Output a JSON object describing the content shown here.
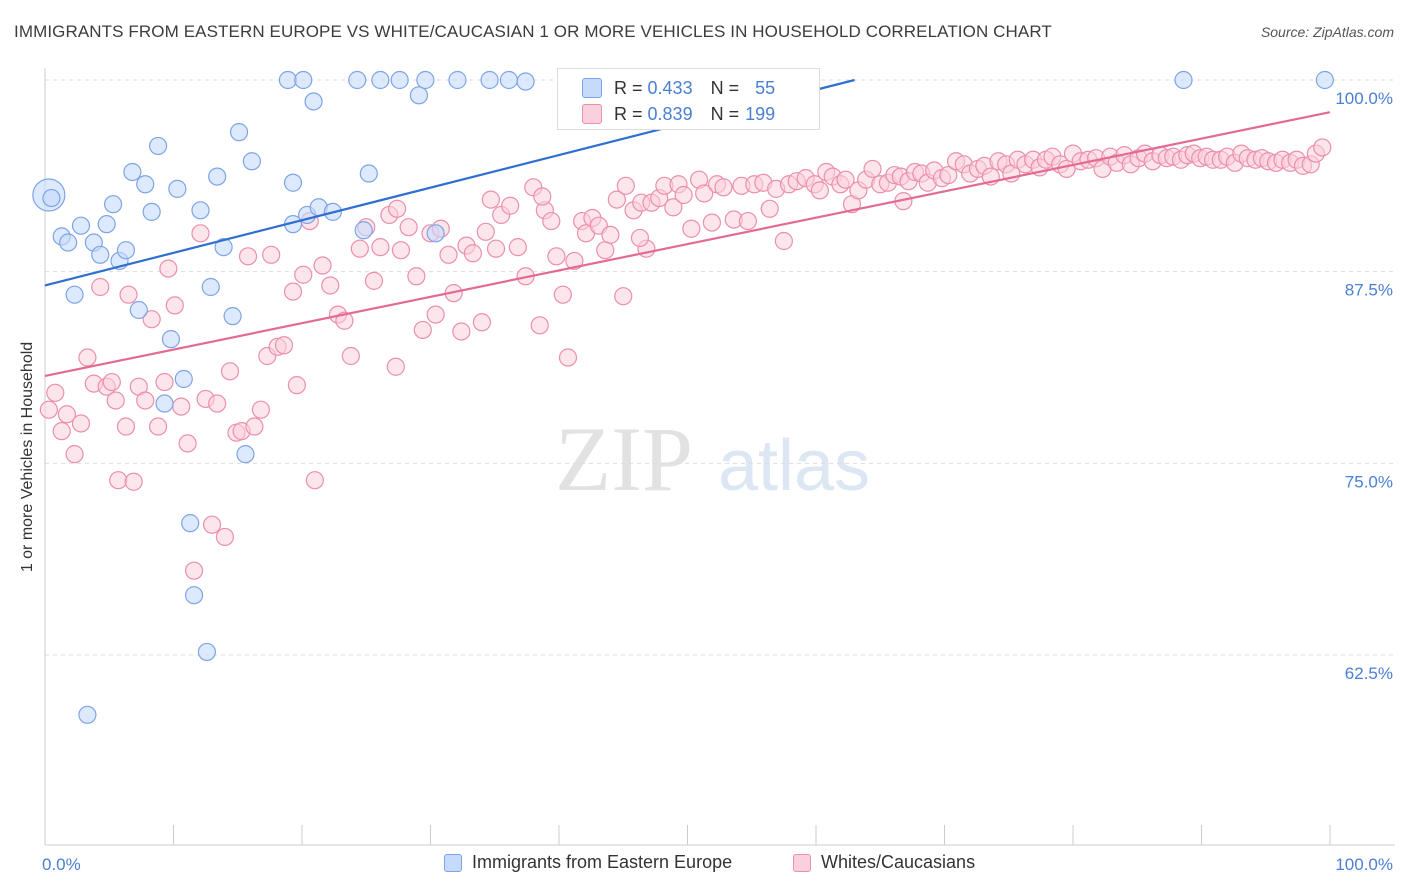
{
  "title": "IMMIGRANTS FROM EASTERN EUROPE VS WHITE/CAUCASIAN 1 OR MORE VEHICLES IN HOUSEHOLD CORRELATION CHART",
  "source": "Source: ZipAtlas.com",
  "watermark": {
    "zip": "ZIP",
    "atlas": "atlas"
  },
  "stats": {
    "blue": {
      "r_label": "R =",
      "r_value": "0.433",
      "n_label": "N =",
      "n_value": "55"
    },
    "pink": {
      "r_label": "R =",
      "r_value": "0.839",
      "n_label": "N =",
      "n_value": "199"
    }
  },
  "colors": {
    "blue_fill": "#c6dafc",
    "blue_stroke": "#7ea4e6",
    "blue_line": "#2f6fd0",
    "pink_fill": "#fbd0dd",
    "pink_stroke": "#ec8fac",
    "pink_line": "#e36a93",
    "tick_label": "#4a7fd4",
    "grid": "#dddddd"
  },
  "chart_data": {
    "type": "scatter",
    "title": "IMMIGRANTS FROM EASTERN EUROPE VS WHITE/CAUCASIAN 1 OR MORE VEHICLES IN HOUSEHOLD CORRELATION CHART",
    "xlabel": "",
    "ylabel": "1 or more Vehicles in Household",
    "xlim": [
      0,
      100
    ],
    "ylim": [
      50.6,
      102
    ],
    "x_tick_labels": [
      "0.0%",
      "100.0%"
    ],
    "y_ticks": [
      62.5,
      75.0,
      87.5,
      100.0
    ],
    "y_tick_labels": [
      "62.5%",
      "75.0%",
      "87.5%",
      "100.0%"
    ],
    "grid": "horizontal dashed",
    "legend_position": "bottom",
    "series": [
      {
        "name": "Immigrants from Eastern Europe",
        "color": "blue",
        "points": [
          [
            0.3,
            92.5
          ],
          [
            0.5,
            92.3
          ],
          [
            1.3,
            89.8
          ],
          [
            1.8,
            89.4
          ],
          [
            2.3,
            86.0
          ],
          [
            2.8,
            90.5
          ],
          [
            3.3,
            58.6
          ],
          [
            3.8,
            89.4
          ],
          [
            4.3,
            88.6
          ],
          [
            4.8,
            90.6
          ],
          [
            5.3,
            91.9
          ],
          [
            5.8,
            88.2
          ],
          [
            6.3,
            88.9
          ],
          [
            6.8,
            94.0
          ],
          [
            7.3,
            85.0
          ],
          [
            7.8,
            93.2
          ],
          [
            8.3,
            91.4
          ],
          [
            8.8,
            95.7
          ],
          [
            9.3,
            78.9
          ],
          [
            9.8,
            83.1
          ],
          [
            10.3,
            92.9
          ],
          [
            10.8,
            80.5
          ],
          [
            11.3,
            71.1
          ],
          [
            11.6,
            66.4
          ],
          [
            12.1,
            91.5
          ],
          [
            12.6,
            62.7
          ],
          [
            12.9,
            86.5
          ],
          [
            13.4,
            93.7
          ],
          [
            13.9,
            89.1
          ],
          [
            14.6,
            84.6
          ],
          [
            15.1,
            96.6
          ],
          [
            15.6,
            75.6
          ],
          [
            16.1,
            94.7
          ],
          [
            18.9,
            100
          ],
          [
            19.3,
            93.3
          ],
          [
            19.3,
            90.6
          ],
          [
            20.1,
            100
          ],
          [
            20.4,
            91.2
          ],
          [
            20.9,
            98.6
          ],
          [
            21.3,
            91.7
          ],
          [
            22.4,
            91.4
          ],
          [
            24.3,
            100
          ],
          [
            24.8,
            90.2
          ],
          [
            25.2,
            93.9
          ],
          [
            26.1,
            100
          ],
          [
            27.6,
            100
          ],
          [
            29.1,
            99.0
          ],
          [
            29.6,
            100
          ],
          [
            30.4,
            90.0
          ],
          [
            32.1,
            100
          ],
          [
            34.6,
            100
          ],
          [
            36.1,
            100
          ],
          [
            37.4,
            99.9
          ],
          [
            88.6,
            100
          ],
          [
            99.6,
            100
          ]
        ],
        "big_points": [
          [
            0.3,
            92.5
          ]
        ],
        "trend": {
          "x0": 0,
          "y0": 86.6,
          "x1": 63,
          "y1": 100
        }
      },
      {
        "name": "Whites/Caucasians",
        "color": "pink",
        "points": [
          [
            0.3,
            78.5
          ],
          [
            0.8,
            79.6
          ],
          [
            1.3,
            77.1
          ],
          [
            1.7,
            78.2
          ],
          [
            2.3,
            75.6
          ],
          [
            2.8,
            77.6
          ],
          [
            3.3,
            81.9
          ],
          [
            3.8,
            80.2
          ],
          [
            4.3,
            86.5
          ],
          [
            4.8,
            80.0
          ],
          [
            5.2,
            80.3
          ],
          [
            5.5,
            79.1
          ],
          [
            5.7,
            73.9
          ],
          [
            6.3,
            77.4
          ],
          [
            6.5,
            86.0
          ],
          [
            6.9,
            73.8
          ],
          [
            7.3,
            80.0
          ],
          [
            7.8,
            79.1
          ],
          [
            8.3,
            84.4
          ],
          [
            8.8,
            77.4
          ],
          [
            9.3,
            80.3
          ],
          [
            9.6,
            87.7
          ],
          [
            10.1,
            85.3
          ],
          [
            10.6,
            78.7
          ],
          [
            11.1,
            76.3
          ],
          [
            11.6,
            68.0
          ],
          [
            12.1,
            90.0
          ],
          [
            12.5,
            79.2
          ],
          [
            13.0,
            71.0
          ],
          [
            13.4,
            78.9
          ],
          [
            14.0,
            70.2
          ],
          [
            14.4,
            81.0
          ],
          [
            14.9,
            77.0
          ],
          [
            15.3,
            77.1
          ],
          [
            15.8,
            88.5
          ],
          [
            16.3,
            77.4
          ],
          [
            16.8,
            78.5
          ],
          [
            17.3,
            82.0
          ],
          [
            17.6,
            88.6
          ],
          [
            18.1,
            82.6
          ],
          [
            18.6,
            82.7
          ],
          [
            19.3,
            86.2
          ],
          [
            19.6,
            80.1
          ],
          [
            20.1,
            87.3
          ],
          [
            20.6,
            90.8
          ],
          [
            21.0,
            73.9
          ],
          [
            21.6,
            87.9
          ],
          [
            22.2,
            86.6
          ],
          [
            22.8,
            84.7
          ],
          [
            23.3,
            84.3
          ],
          [
            23.8,
            82.0
          ],
          [
            24.5,
            89.0
          ],
          [
            25.0,
            90.4
          ],
          [
            25.6,
            86.9
          ],
          [
            26.1,
            89.1
          ],
          [
            26.8,
            91.2
          ],
          [
            27.3,
            81.3
          ],
          [
            27.7,
            88.9
          ],
          [
            28.3,
            90.4
          ],
          [
            28.9,
            87.2
          ],
          [
            29.4,
            83.7
          ],
          [
            30.0,
            90.0
          ],
          [
            30.4,
            84.7
          ],
          [
            30.8,
            90.3
          ],
          [
            31.4,
            88.6
          ],
          [
            31.8,
            86.1
          ],
          [
            32.4,
            83.6
          ],
          [
            32.8,
            89.2
          ],
          [
            33.3,
            88.7
          ],
          [
            34.0,
            84.2
          ],
          [
            34.7,
            92.2
          ],
          [
            35.1,
            89.0
          ],
          [
            35.5,
            91.2
          ],
          [
            36.2,
            91.8
          ],
          [
            36.8,
            89.1
          ],
          [
            37.4,
            87.2
          ],
          [
            38.0,
            93.0
          ],
          [
            38.5,
            84.0
          ],
          [
            38.9,
            91.5
          ],
          [
            39.4,
            90.8
          ],
          [
            39.8,
            88.5
          ],
          [
            40.3,
            86.0
          ],
          [
            40.7,
            81.9
          ],
          [
            41.2,
            88.2
          ],
          [
            41.8,
            90.8
          ],
          [
            42.1,
            90.0
          ],
          [
            42.6,
            91.0
          ],
          [
            43.1,
            90.5
          ],
          [
            43.6,
            88.9
          ],
          [
            44.0,
            89.9
          ],
          [
            44.5,
            92.2
          ],
          [
            45.0,
            85.9
          ],
          [
            45.2,
            93.1
          ],
          [
            45.8,
            91.5
          ],
          [
            46.4,
            92.0
          ],
          [
            46.8,
            89.0
          ],
          [
            47.2,
            92.0
          ],
          [
            47.8,
            92.3
          ],
          [
            48.2,
            93.1
          ],
          [
            48.9,
            91.7
          ],
          [
            49.3,
            93.2
          ],
          [
            49.7,
            92.5
          ],
          [
            50.3,
            90.3
          ],
          [
            50.9,
            93.5
          ],
          [
            51.3,
            92.6
          ],
          [
            51.9,
            90.7
          ],
          [
            52.3,
            93.2
          ],
          [
            52.8,
            93.0
          ],
          [
            53.6,
            90.9
          ],
          [
            54.2,
            93.1
          ],
          [
            54.7,
            90.8
          ],
          [
            55.2,
            93.2
          ],
          [
            55.9,
            93.3
          ],
          [
            56.4,
            91.6
          ],
          [
            56.9,
            92.9
          ],
          [
            57.5,
            89.5
          ],
          [
            57.9,
            93.2
          ],
          [
            58.5,
            93.4
          ],
          [
            59.2,
            93.6
          ],
          [
            59.9,
            93.2
          ],
          [
            60.3,
            92.8
          ],
          [
            60.8,
            94.0
          ],
          [
            61.3,
            93.7
          ],
          [
            61.9,
            93.2
          ],
          [
            62.3,
            93.5
          ],
          [
            62.8,
            91.9
          ],
          [
            63.3,
            92.8
          ],
          [
            63.9,
            93.5
          ],
          [
            64.4,
            94.2
          ],
          [
            65.0,
            93.2
          ],
          [
            65.6,
            93.3
          ],
          [
            66.1,
            93.8
          ],
          [
            66.6,
            93.7
          ],
          [
            67.2,
            93.4
          ],
          [
            67.7,
            94.0
          ],
          [
            68.2,
            93.9
          ],
          [
            68.7,
            93.3
          ],
          [
            69.2,
            94.1
          ],
          [
            69.8,
            93.6
          ],
          [
            70.3,
            93.8
          ],
          [
            70.9,
            94.7
          ],
          [
            71.5,
            94.5
          ],
          [
            72.0,
            93.9
          ],
          [
            72.6,
            94.2
          ],
          [
            73.1,
            94.4
          ],
          [
            73.6,
            93.7
          ],
          [
            74.2,
            94.7
          ],
          [
            74.8,
            94.5
          ],
          [
            75.2,
            93.9
          ],
          [
            75.7,
            94.8
          ],
          [
            76.3,
            94.5
          ],
          [
            76.9,
            94.8
          ],
          [
            77.4,
            94.3
          ],
          [
            77.9,
            94.8
          ],
          [
            78.4,
            95.0
          ],
          [
            79.0,
            94.5
          ],
          [
            79.5,
            94.2
          ],
          [
            80.0,
            95.2
          ],
          [
            80.6,
            94.7
          ],
          [
            81.2,
            94.8
          ],
          [
            81.8,
            94.9
          ],
          [
            82.3,
            94.2
          ],
          [
            82.9,
            95.0
          ],
          [
            83.4,
            94.6
          ],
          [
            84.0,
            95.1
          ],
          [
            84.5,
            94.5
          ],
          [
            85.1,
            94.9
          ],
          [
            85.6,
            95.2
          ],
          [
            86.2,
            94.7
          ],
          [
            86.8,
            95.1
          ],
          [
            87.3,
            94.9
          ],
          [
            87.8,
            95.0
          ],
          [
            88.4,
            94.8
          ],
          [
            88.9,
            95.1
          ],
          [
            89.4,
            95.2
          ],
          [
            89.9,
            94.9
          ],
          [
            90.4,
            95.0
          ],
          [
            90.9,
            94.8
          ],
          [
            91.5,
            94.8
          ],
          [
            92.0,
            95.0
          ],
          [
            92.6,
            94.6
          ],
          [
            93.1,
            95.2
          ],
          [
            93.6,
            94.9
          ],
          [
            94.2,
            94.8
          ],
          [
            94.7,
            94.9
          ],
          [
            95.2,
            94.7
          ],
          [
            95.8,
            94.6
          ],
          [
            96.3,
            94.8
          ],
          [
            96.9,
            94.6
          ],
          [
            97.4,
            94.8
          ],
          [
            97.9,
            94.4
          ],
          [
            98.5,
            94.5
          ],
          [
            98.9,
            95.2
          ],
          [
            99.4,
            95.6
          ],
          [
            38.7,
            92.4
          ],
          [
            27.4,
            91.6
          ],
          [
            34.3,
            90.1
          ],
          [
            46.3,
            89.7
          ],
          [
            66.8,
            92.1
          ]
        ],
        "trend": {
          "x0": 0,
          "y0": 80.7,
          "x1": 100,
          "y1": 97.9
        }
      }
    ]
  },
  "axis": {
    "ylabel": "1 or more Vehicles in Household",
    "x_min_label": "0.0%",
    "x_max_label": "100.0%",
    "y_labels": {
      "t1": "62.5%",
      "t2": "75.0%",
      "t3": "87.5%",
      "t4": "100.0%"
    }
  },
  "legend": {
    "blue": "Immigrants from Eastern Europe",
    "pink": "Whites/Caucasians"
  }
}
